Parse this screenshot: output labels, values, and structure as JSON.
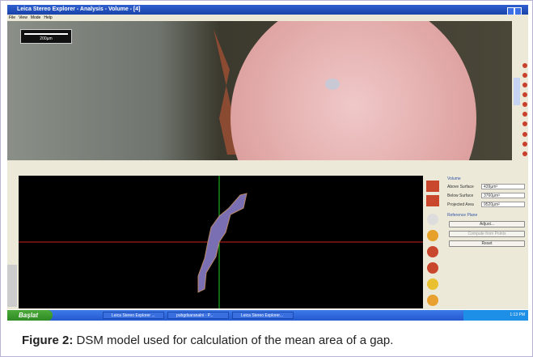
{
  "window": {
    "title": "Leica Stereo Explorer - Analysis - Volume - [4]",
    "menu": [
      "File",
      "View",
      "Mode",
      "Help"
    ],
    "scale_bar": "200µm"
  },
  "volume_panel": {
    "heading": "Volume",
    "rows": [
      {
        "label": "Above Surface",
        "value": "439µm³"
      },
      {
        "label": "Below Surface",
        "value": "3760µm³"
      },
      {
        "label": "Projected Area",
        "value": "9520µm²"
      }
    ],
    "reference_heading": "Reference Plane",
    "buttons": [
      "Adjust...",
      "Compute from Points",
      "Reset"
    ]
  },
  "taskbar": {
    "start": "Başlat",
    "items": [
      "Leica Stereo Explorer ...",
      "pubgdsaranalni - P...",
      "Leica Stereo Explorer..."
    ],
    "clock": "1:13 PM"
  },
  "caption": {
    "label": "Figure 2:",
    "text": "DSM model used for calculation of the mean area of a gap."
  }
}
